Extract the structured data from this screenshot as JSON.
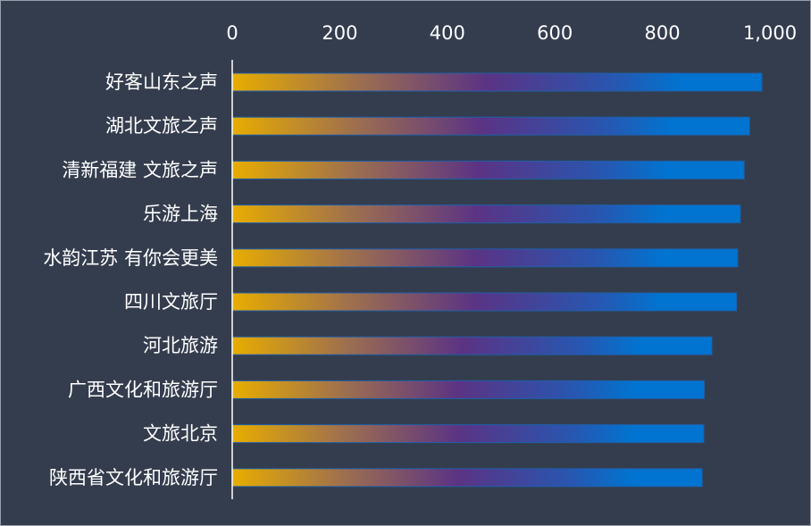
{
  "chart_data": {
    "type": "bar",
    "orientation": "horizontal",
    "categories": [
      "好客山东之声",
      "湖北文旅之声",
      "清新福建 文旅之声",
      "乐游上海",
      "水韵江苏 有你会更美",
      "四川文旅厅",
      "河北旅游",
      "广西文化和旅游厅",
      "文旅北京",
      "陕西省文化和旅游厅"
    ],
    "values": [
      985,
      962,
      952,
      945,
      940,
      938,
      892,
      878,
      877,
      874
    ],
    "xlim": [
      0,
      1000
    ],
    "xticks": [
      "0",
      "200",
      "400",
      "600",
      "800",
      "1,000"
    ],
    "x_axis_position": "top",
    "grid": false,
    "legend": "none",
    "title": "",
    "xlabel": "",
    "ylabel": "",
    "colors": {
      "background": "#343d4e",
      "bar_gradient": [
        "#e8ad00",
        "#9a6c52",
        "#5b3384",
        "#2856b0",
        "#0074d0"
      ],
      "axis_line": "#ffffff",
      "text": "#ffffff"
    }
  }
}
